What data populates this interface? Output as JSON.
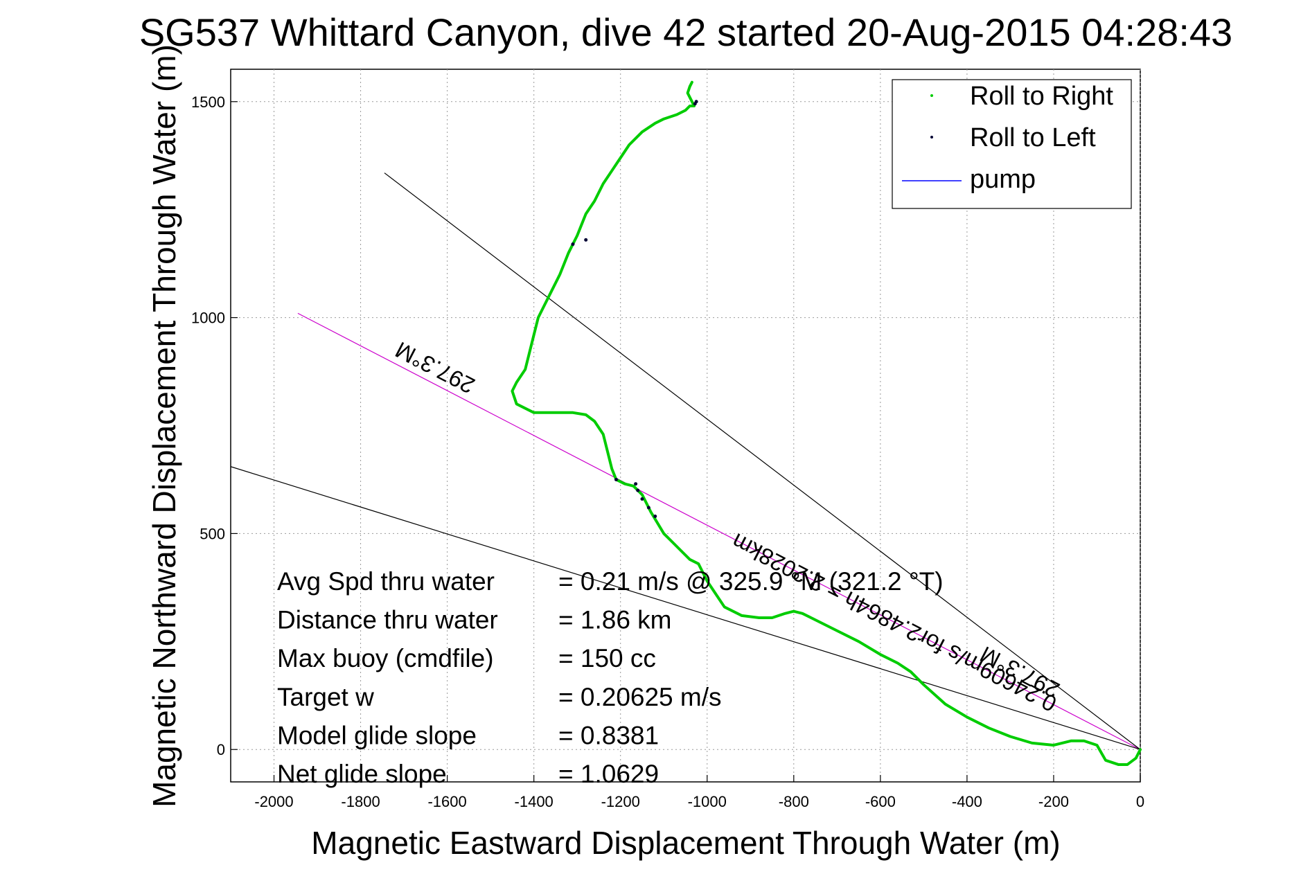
{
  "chart_data": {
    "type": "line",
    "title": "SG537 Whittard Canyon, dive 42 started 20-Aug-2015 04:28:43",
    "xlabel": "Magnetic Eastward Displacement Through Water (m)",
    "ylabel": "Magnetic Northward Displacement Through Water (m)",
    "xlim": [
      -2100,
      0
    ],
    "ylim": [
      -75,
      1575
    ],
    "xticks": [
      -2000,
      -1800,
      -1600,
      -1400,
      -1200,
      -1000,
      -800,
      -600,
      -400,
      -200,
      0
    ],
    "yticks": [
      0,
      500,
      1000,
      1500
    ],
    "grid": true,
    "legend_position": "top-right",
    "series": [
      {
        "name": "Roll to Right",
        "color": "#00cc00",
        "style": "points",
        "x": [
          0,
          -10,
          -30,
          -50,
          -80,
          -100,
          -130,
          -160,
          -200,
          -250,
          -300,
          -350,
          -400,
          -450,
          -500,
          -530,
          -560,
          -600,
          -650,
          -700,
          -750,
          -780,
          -800,
          -820,
          -850,
          -880,
          -920,
          -960,
          -980,
          -1000,
          -1010,
          -1020,
          -1040,
          -1060,
          -1080,
          -1100,
          -1130,
          -1150,
          -1170,
          -1190,
          -1210,
          -1220,
          -1230,
          -1240,
          -1260,
          -1280,
          -1310,
          -1350,
          -1400,
          -1440,
          -1450,
          -1440,
          -1420,
          -1410,
          -1400,
          -1390,
          -1380,
          -1360,
          -1340,
          -1320,
          -1300,
          -1280,
          -1260,
          -1240,
          -1220,
          -1200,
          -1180,
          -1150,
          -1120,
          -1100,
          -1070,
          -1050,
          -1040,
          -1030,
          -1035,
          -1045,
          -1040,
          -1035
        ],
        "y": [
          0,
          -20,
          -35,
          -35,
          -25,
          10,
          20,
          20,
          10,
          15,
          30,
          50,
          75,
          105,
          150,
          180,
          200,
          220,
          250,
          275,
          300,
          315,
          320,
          315,
          305,
          305,
          310,
          330,
          360,
          390,
          410,
          430,
          440,
          460,
          480,
          500,
          550,
          590,
          610,
          615,
          625,
          650,
          690,
          730,
          760,
          775,
          780,
          780,
          780,
          800,
          830,
          850,
          880,
          920,
          960,
          1000,
          1020,
          1060,
          1100,
          1150,
          1190,
          1240,
          1270,
          1310,
          1340,
          1370,
          1400,
          1430,
          1450,
          1460,
          1470,
          1480,
          1490,
          1490,
          1500,
          1520,
          1535,
          1545
        ]
      },
      {
        "name": "Roll to Left",
        "color": "#000033",
        "style": "points",
        "x": [
          -1120,
          -1135,
          -1150,
          -1160,
          -1165,
          -1025,
          -1028,
          -1280,
          -1310,
          -1210
        ],
        "y": [
          540,
          560,
          580,
          600,
          615,
          1500,
          1495,
          1180,
          1170,
          625
        ]
      },
      {
        "name": "pump",
        "color": "#0000ff",
        "style": "line",
        "x": [],
        "y": []
      }
    ],
    "reference_lines": [
      {
        "color": "#cc00cc",
        "x": [
          0,
          -1945
        ],
        "y": [
          0,
          1010
        ]
      },
      {
        "color": "#000000",
        "x": [
          0,
          -1745
        ],
        "y": [
          0,
          1335
        ]
      },
      {
        "color": "#000000",
        "x": [
          0,
          -2100
        ],
        "y": [
          0,
          655
        ]
      }
    ],
    "annotations": [
      {
        "text": "297.3°M",
        "x": -1620,
        "y": 900,
        "rotate": 207.3
      },
      {
        "text": "0.24609m/s for2.4864h = 2.2028km",
        "x": -560,
        "y": 310,
        "rotate": 207.3
      },
      {
        "text": "297.3°M",
        "x": -270,
        "y": 195,
        "rotate": 207.3
      }
    ],
    "stats": [
      {
        "label": "Avg Spd thru water",
        "value": "=  0.21 m/s @ 325.9 °M (321.2 °T)"
      },
      {
        "label": "Distance thru water",
        "value": "=  1.86 km"
      },
      {
        "label": "Max buoy (cmdfile)",
        "value": "= 150 cc"
      },
      {
        "label": "Target w",
        "value": "= 0.20625 m/s"
      },
      {
        "label": "Model glide slope",
        "value": "= 0.8381"
      },
      {
        "label": "Net glide slope",
        "value": "= 1.0629"
      }
    ]
  }
}
